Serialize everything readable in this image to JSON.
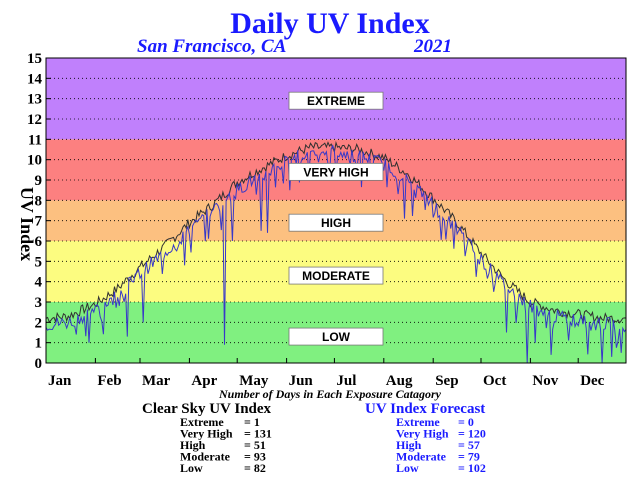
{
  "chart_data": {
    "type": "line",
    "title": "Daily UV Index",
    "subtitle_location": "San Francisco, CA",
    "subtitle_year": "2021",
    "ylabel": "UV Index",
    "ylim": [
      0,
      15
    ],
    "yticks": [
      "0",
      "1",
      "2",
      "3",
      "4",
      "5",
      "6",
      "7",
      "8",
      "9",
      "10",
      "11",
      "12",
      "13",
      "14",
      "15"
    ],
    "xlim": [
      1,
      365
    ],
    "months": [
      {
        "label": "Jan",
        "day": 1
      },
      {
        "label": "Feb",
        "day": 32
      },
      {
        "label": "Mar",
        "day": 60
      },
      {
        "label": "Apr",
        "day": 91
      },
      {
        "label": "May",
        "day": 121
      },
      {
        "label": "Jun",
        "day": 152
      },
      {
        "label": "Jul",
        "day": 182
      },
      {
        "label": "Aug",
        "day": 213
      },
      {
        "label": "Sep",
        "day": 244
      },
      {
        "label": "Oct",
        "day": 274
      },
      {
        "label": "Nov",
        "day": 305
      },
      {
        "label": "Dec",
        "day": 335
      }
    ],
    "grid": true,
    "zones": [
      {
        "label": "LOW",
        "from": 0,
        "to": 3,
        "color": "#80f080"
      },
      {
        "label": "MODERATE",
        "from": 3,
        "to": 6,
        "color": "#fcfc80"
      },
      {
        "label": "HIGH",
        "from": 6,
        "to": 8,
        "color": "#fcc080"
      },
      {
        "label": "VERY HIGH",
        "from": 8,
        "to": 11,
        "color": "#fc8080"
      },
      {
        "label": "EXTREME",
        "from": 11,
        "to": 15,
        "color": "#c080fc"
      }
    ],
    "series": [
      {
        "key": "clear_sky",
        "color": "#303030",
        "knots": [
          [
            1,
            2.2
          ],
          [
            15,
            2.3
          ],
          [
            32,
            2.9
          ],
          [
            45,
            3.6
          ],
          [
            60,
            4.7
          ],
          [
            75,
            5.7
          ],
          [
            91,
            6.9
          ],
          [
            106,
            7.8
          ],
          [
            121,
            8.9
          ],
          [
            137,
            9.6
          ],
          [
            152,
            10.2
          ],
          [
            167,
            10.6
          ],
          [
            182,
            10.6
          ],
          [
            197,
            10.5
          ],
          [
            213,
            10.1
          ],
          [
            228,
            9.3
          ],
          [
            244,
            8.1
          ],
          [
            259,
            6.9
          ],
          [
            274,
            5.4
          ],
          [
            290,
            4.0
          ],
          [
            305,
            3.0
          ],
          [
            320,
            2.6
          ],
          [
            335,
            2.4
          ],
          [
            350,
            2.2
          ],
          [
            365,
            2.2
          ]
        ]
      },
      {
        "key": "forecast",
        "color": "#3838c8",
        "knots": [
          [
            1,
            1.9
          ],
          [
            15,
            2.0
          ],
          [
            32,
            2.6
          ],
          [
            45,
            3.3
          ],
          [
            60,
            4.4
          ],
          [
            75,
            5.4
          ],
          [
            91,
            6.5
          ],
          [
            106,
            7.5
          ],
          [
            121,
            8.5
          ],
          [
            137,
            9.3
          ],
          [
            152,
            9.9
          ],
          [
            167,
            10.4
          ],
          [
            182,
            10.4
          ],
          [
            197,
            10.2
          ],
          [
            213,
            9.8
          ],
          [
            228,
            9.0
          ],
          [
            244,
            7.8
          ],
          [
            259,
            6.6
          ],
          [
            274,
            5.1
          ],
          [
            290,
            3.7
          ],
          [
            305,
            2.8
          ],
          [
            320,
            2.3
          ],
          [
            335,
            2.1
          ],
          [
            350,
            1.9
          ],
          [
            365,
            1.9
          ]
        ],
        "dips": [
          [
            20,
            1.4
          ],
          [
            28,
            1.0
          ],
          [
            52,
            1.3
          ],
          [
            62,
            2.0
          ],
          [
            88,
            4.8
          ],
          [
            113,
            0.9
          ],
          [
            118,
            6.0
          ],
          [
            136,
            6.5
          ],
          [
            140,
            6.4
          ],
          [
            154,
            8.5
          ],
          [
            183,
            9.2
          ],
          [
            205,
            9.0
          ],
          [
            226,
            7.1
          ],
          [
            256,
            7.0
          ],
          [
            282,
            3.5
          ],
          [
            290,
            1.5
          ],
          [
            303,
            0.0
          ],
          [
            308,
            1.0
          ],
          [
            318,
            0.4
          ],
          [
            326,
            2.3
          ],
          [
            343,
            1.6
          ],
          [
            350,
            0.0
          ],
          [
            356,
            0.3
          ],
          [
            362,
            0.5
          ]
        ]
      }
    ],
    "caption": "Number of Days in Each Exposure Catagory",
    "summaries": [
      {
        "title": "Clear Sky UV Index",
        "color": "#000000",
        "rows": [
          [
            "Extreme",
            "1"
          ],
          [
            "Very High",
            "131"
          ],
          [
            "High",
            "51"
          ],
          [
            "Moderate",
            "93"
          ],
          [
            "Low",
            "82"
          ]
        ]
      },
      {
        "title": "UV Index Forecast",
        "color": "#1a1aff",
        "rows": [
          [
            "Extreme",
            "0"
          ],
          [
            "Very High",
            "120"
          ],
          [
            "High",
            "57"
          ],
          [
            "Moderate",
            "79"
          ],
          [
            "Low",
            "102"
          ]
        ]
      }
    ]
  }
}
